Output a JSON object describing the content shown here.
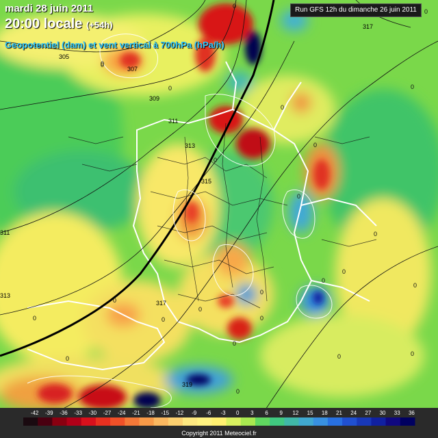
{
  "header": {
    "date": "mardi 28 juin 2011",
    "time": "20:00 locale",
    "lead": "(+54h)",
    "parameter": "Geopotentiel (dam) et vent vertical à 700hPa (hPa/h)",
    "run": "Run GFS 12h du dimanche 26 juin 2011"
  },
  "legend": {
    "values": [
      "-42",
      "-39",
      "-36",
      "-33",
      "-30",
      "-27",
      "-24",
      "-21",
      "-18",
      "-15",
      "-12",
      "-9",
      "-6",
      "-3",
      "0",
      "3",
      "6",
      "9",
      "12",
      "15",
      "18",
      "21",
      "24",
      "27",
      "30",
      "33",
      "36"
    ],
    "colors": [
      "#1a0a10",
      "#4a0010",
      "#8a0010",
      "#b00018",
      "#d8101c",
      "#e83020",
      "#f05028",
      "#f47838",
      "#f89a48",
      "#fbb860",
      "#fcd070",
      "#fde880",
      "#fff280",
      "#fff070",
      "#d8f060",
      "#a8e850",
      "#60d860",
      "#40c880",
      "#40b8a8",
      "#40a8d0",
      "#3890e0",
      "#2870e0",
      "#2050d0",
      "#1838b8",
      "#1020a0",
      "#100880",
      "#000060"
    ],
    "copyright": "Copyright 2011 Meteociel.fr"
  },
  "contours": {
    "labels": [
      "305",
      "307",
      "309",
      "311",
      "313",
      "315",
      "317",
      "319",
      "317",
      "313",
      "311"
    ]
  },
  "zero_labels": [
    "0",
    "0",
    "0",
    "0",
    "0",
    "0",
    "0",
    "0",
    "0",
    "0",
    "0",
    "0",
    "0",
    "0",
    "0",
    "0",
    "0",
    "0",
    "0",
    "0",
    "0",
    "0",
    "0",
    "0",
    "0"
  ]
}
